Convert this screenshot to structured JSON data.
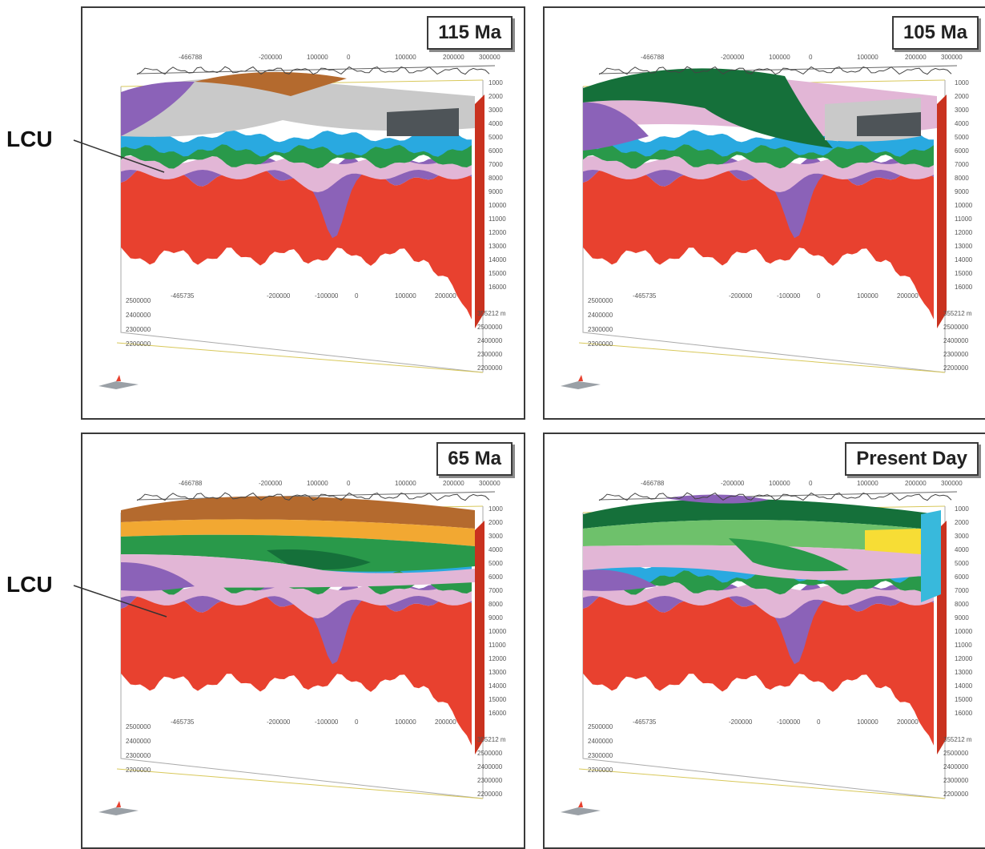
{
  "panels": [
    {
      "id": "p1",
      "era_label": "115 Ma",
      "state": "early"
    },
    {
      "id": "p2",
      "era_label": "105 Ma",
      "state": "mid"
    },
    {
      "id": "p3",
      "era_label": "65 Ma",
      "state": "late"
    },
    {
      "id": "p4",
      "era_label": "Present Day",
      "state": "present"
    }
  ],
  "callouts": [
    {
      "label": "LCU"
    },
    {
      "label": "LCU"
    }
  ],
  "axis_ticks": {
    "top": [
      "-466788",
      "-200000",
      "100000",
      "0",
      "100000",
      "200000",
      "300000"
    ],
    "bottom": [
      "-465735",
      "-200000",
      "-100000",
      "0",
      "100000",
      "200000"
    ],
    "depth": [
      "1000",
      "2000",
      "3000",
      "4000",
      "5000",
      "6000",
      "7000",
      "8000",
      "9000",
      "10000",
      "11000",
      "12000",
      "13000",
      "14000",
      "15000",
      "16000"
    ],
    "northing": [
      "2500000",
      "2400000",
      "2300000",
      "2200000"
    ],
    "right_north": [
      "355212 m",
      "2500000",
      "2400000",
      "2300000",
      "2200000"
    ]
  },
  "colors": {
    "basement": "#e8412f",
    "violet": "#8b62b8",
    "lilac": "#c79ac9",
    "pink": "#e2b6d6",
    "blue": "#29a9e0",
    "green": "#29994a",
    "dark_green": "#15703a",
    "light_green": "#6ec16b",
    "orange": "#f2a832",
    "yellow": "#f7dd35",
    "brown": "#b46a2e",
    "salt_grey": "#c9c9c9",
    "dark_grey": "#4e5458",
    "cyan": "#38b9dc"
  }
}
